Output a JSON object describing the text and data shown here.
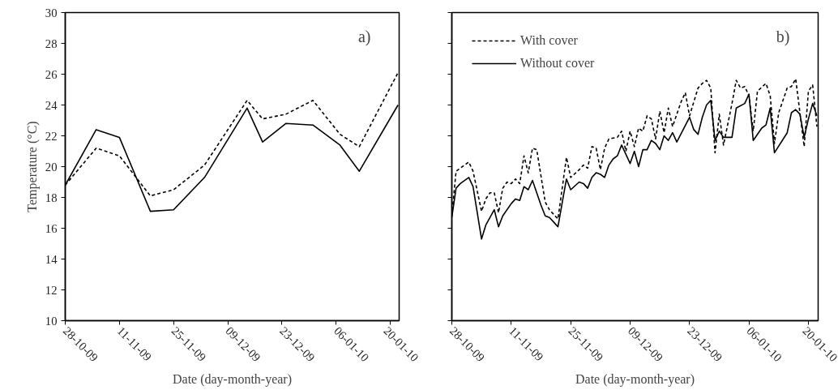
{
  "chart_data": [
    {
      "type": "line",
      "xlabel": "Date (day-month-year)",
      "ylabel": "Temperature (°C)",
      "annotations": [
        "a)"
      ],
      "xlim": [
        "2009-10-28",
        "2010-01-22T07:00"
      ],
      "ylim": [
        10,
        30
      ],
      "yticks": [
        10,
        12,
        14,
        16,
        18,
        20,
        22,
        24,
        26,
        28,
        30
      ],
      "xticks": [
        {
          "value": "2009-10-28",
          "label": "28-10-09"
        },
        {
          "value": "2009-11-11",
          "label": "11-11-09"
        },
        {
          "value": "2009-11-25",
          "label": "25-11-09"
        },
        {
          "value": "2009-12-09",
          "label": "09-12-09"
        },
        {
          "value": "2009-12-23",
          "label": "23-12-09"
        },
        {
          "value": "2010-01-06",
          "label": "06-01-10"
        },
        {
          "value": "2010-01-20",
          "label": "20-01-10"
        }
      ],
      "grid": false,
      "legend": false,
      "marker": "none",
      "x": [
        "2009-10-28",
        "2009-11-05",
        "2009-11-11",
        "2009-11-19",
        "2009-11-25",
        "2009-12-03",
        "2009-12-14",
        "2009-12-18",
        "2009-12-24",
        "2009-12-31",
        "2010-01-07",
        "2010-01-12",
        "2010-01-22"
      ],
      "series": [
        {
          "color": "#000000",
          "line_style": "dashed",
          "values": [
            18.8,
            21.2,
            20.7,
            18.1,
            18.5,
            20.1,
            24.3,
            23.1,
            23.4,
            24.3,
            22.1,
            21.3,
            26.1
          ]
        },
        {
          "color": "#000000",
          "line_style": "solid",
          "values": [
            18.8,
            22.4,
            21.9,
            17.1,
            17.2,
            19.3,
            23.8,
            21.6,
            22.8,
            22.7,
            21.4,
            19.7,
            24.0
          ]
        }
      ]
    },
    {
      "type": "line",
      "xlabel": "Date (day-month-year)",
      "annotations": [
        "b)"
      ],
      "tick_labels": "x",
      "xlim": [
        "2009-10-28",
        "2010-01-22T07:00"
      ],
      "ylim": [
        10,
        30
      ],
      "yticks": [
        10,
        12,
        14,
        16,
        18,
        20,
        22,
        24,
        26,
        28,
        30
      ],
      "xticks": [
        {
          "value": "2009-10-28",
          "label": "28-10-09"
        },
        {
          "value": "2009-11-11",
          "label": "11-11-09"
        },
        {
          "value": "2009-11-25",
          "label": "25-11-09"
        },
        {
          "value": "2009-12-09",
          "label": "09-12-09"
        },
        {
          "value": "2009-12-23",
          "label": "23-12-09"
        },
        {
          "value": "2010-01-06",
          "label": "06-01-10"
        },
        {
          "value": "2010-01-20",
          "label": "20-01-10"
        }
      ],
      "grid": false,
      "legend": "top left",
      "marker": "none",
      "series": [
        {
          "name": "With cover",
          "color": "#000000",
          "line_style": "dashed",
          "x": [
            "2009-10-28",
            "2009-10-29",
            "2009-10-31",
            "2009-11-01",
            "2009-11-02",
            "2009-11-04",
            "2009-11-05",
            "2009-11-06",
            "2009-11-07",
            "2009-11-08",
            "2009-11-09",
            "2009-11-10",
            "2009-11-11",
            "2009-11-12",
            "2009-11-13",
            "2009-11-14",
            "2009-11-15",
            "2009-11-16",
            "2009-11-17",
            "2009-11-19",
            "2009-11-20",
            "2009-11-21",
            "2009-11-22",
            "2009-11-24",
            "2009-11-25",
            "2009-11-27",
            "2009-11-28",
            "2009-11-29",
            "2009-11-30",
            "2009-12-01",
            "2009-12-02",
            "2009-12-03",
            "2009-12-04",
            "2009-12-06",
            "2009-12-07",
            "2009-12-08",
            "2009-12-09",
            "2009-12-10",
            "2009-12-11",
            "2009-12-12",
            "2009-12-13",
            "2009-12-14",
            "2009-12-15",
            "2009-12-16",
            "2009-12-17",
            "2009-12-18",
            "2009-12-19",
            "2009-12-21",
            "2009-12-22",
            "2009-12-23",
            "2009-12-25",
            "2009-12-26",
            "2009-12-27",
            "2009-12-28",
            "2009-12-29",
            "2009-12-30",
            "2009-12-31",
            "2010-01-02",
            "2010-01-03",
            "2010-01-04",
            "2010-01-05",
            "2010-01-06",
            "2010-01-07",
            "2010-01-08",
            "2010-01-10",
            "2010-01-11",
            "2010-01-12",
            "2010-01-13",
            "2010-01-15",
            "2010-01-16",
            "2010-01-17",
            "2010-01-18",
            "2010-01-19",
            "2010-01-20",
            "2010-01-21",
            "2010-01-22"
          ],
          "values": [
            16.8,
            19.7,
            20.1,
            20.3,
            19.7,
            17.1,
            17.9,
            18.3,
            18.3,
            17.0,
            18.6,
            19.0,
            18.9,
            19.2,
            18.9,
            20.7,
            19.6,
            21.2,
            21.1,
            17.7,
            17.2,
            16.9,
            16.6,
            20.6,
            19.3,
            19.8,
            20.1,
            19.9,
            21.3,
            21.2,
            19.8,
            21.2,
            21.8,
            21.9,
            22.3,
            21.0,
            22.3,
            21.3,
            22.5,
            22.3,
            23.3,
            23.1,
            21.8,
            23.6,
            22.2,
            23.8,
            22.6,
            24.2,
            24.8,
            23.3,
            25.1,
            25.4,
            25.6,
            25.1,
            20.9,
            23.4,
            21.4,
            24.1,
            25.6,
            25.1,
            25.2,
            24.6,
            22.3,
            24.9,
            25.4,
            24.6,
            21.5,
            23.5,
            25.1,
            25.2,
            25.7,
            23.5,
            21.3,
            24.9,
            25.3,
            22.6
          ]
        },
        {
          "name": "Without cover",
          "color": "#000000",
          "line_style": "solid",
          "x": [
            "2009-10-28",
            "2009-10-29",
            "2009-10-30",
            "2009-11-01",
            "2009-11-02",
            "2009-11-04",
            "2009-11-05",
            "2009-11-07",
            "2009-11-08",
            "2009-11-09",
            "2009-11-11",
            "2009-11-12",
            "2009-11-13",
            "2009-11-14",
            "2009-11-15",
            "2009-11-16",
            "2009-11-18",
            "2009-11-19",
            "2009-11-20",
            "2009-11-22",
            "2009-11-24",
            "2009-11-25",
            "2009-11-27",
            "2009-11-28",
            "2009-11-29",
            "2009-11-30",
            "2009-12-01",
            "2009-12-02",
            "2009-12-03",
            "2009-12-04",
            "2009-12-05",
            "2009-12-06",
            "2009-12-07",
            "2009-12-09",
            "2009-12-10",
            "2009-12-11",
            "2009-12-12",
            "2009-12-13",
            "2009-12-14",
            "2009-12-15",
            "2009-12-16",
            "2009-12-17",
            "2009-12-18",
            "2009-12-19",
            "2009-12-20",
            "2009-12-23",
            "2009-12-24",
            "2009-12-25",
            "2009-12-26",
            "2009-12-27",
            "2009-12-28",
            "2009-12-29",
            "2009-12-30",
            "2009-12-31",
            "2010-01-02",
            "2010-01-03",
            "2010-01-05",
            "2010-01-06",
            "2010-01-07",
            "2010-01-09",
            "2010-01-10",
            "2010-01-11",
            "2010-01-12",
            "2010-01-15",
            "2010-01-16",
            "2010-01-17",
            "2010-01-18",
            "2010-01-19",
            "2010-01-20",
            "2010-01-21",
            "2010-01-22"
          ],
          "values": [
            16.7,
            18.6,
            18.9,
            19.3,
            18.7,
            15.3,
            16.2,
            17.2,
            16.1,
            16.8,
            17.6,
            17.9,
            17.8,
            18.7,
            18.5,
            19.1,
            17.5,
            16.8,
            16.7,
            16.1,
            19.2,
            18.5,
            19.0,
            18.9,
            18.6,
            19.3,
            19.6,
            19.5,
            19.3,
            20.1,
            20.5,
            20.7,
            21.4,
            20.2,
            21.0,
            20.0,
            21.1,
            21.1,
            21.7,
            21.5,
            21.1,
            22.0,
            21.7,
            22.2,
            21.6,
            23.2,
            22.4,
            22.1,
            23.2,
            24.0,
            24.3,
            21.7,
            22.3,
            21.9,
            21.9,
            23.8,
            24.1,
            24.7,
            21.7,
            22.5,
            22.7,
            23.8,
            20.9,
            22.2,
            23.5,
            23.7,
            23.4,
            21.9,
            23.1,
            24.1,
            23.3
          ]
        }
      ]
    }
  ]
}
